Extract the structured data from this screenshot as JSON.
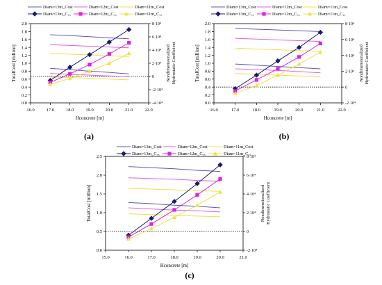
{
  "panels": [
    {
      "label": "(a)",
      "x_ticks": [
        "16.0",
        "17.0",
        "18.0",
        "19.0",
        "20.0",
        "21.0",
        "22.0"
      ],
      "y_ticks": [
        "0.0",
        "0.2",
        "0.4",
        "0.6",
        "0.8",
        "1.0",
        "1.2",
        "1.4",
        "1.6",
        "1.8",
        "2.0"
      ],
      "y2_ticks": [
        "-4·10⁴",
        "-2·10⁴",
        "0",
        "2·10⁴",
        "4·10⁴",
        "6·10⁴",
        "8·10⁴"
      ],
      "xlabel": "Hconcrete [m]",
      "ylabel": "TotalCost [million]",
      "y2label_line1": "Nondimensionalized",
      "y2label_line2": "Hydrostatic Coefficient"
    },
    {
      "label": "(b)",
      "x_ticks": [
        "16.0",
        "17.0",
        "18.0",
        "19.0",
        "20.0",
        "21.0",
        "22.0"
      ],
      "y_ticks": [
        "0.0",
        "0.2",
        "0.4",
        "0.6",
        "0.8",
        "1.0",
        "1.2",
        "1.4",
        "1.6",
        "1.8",
        "2.0"
      ],
      "y2_ticks": [
        "-2·10⁴",
        "0",
        "2·10⁴",
        "4·10⁴",
        "6·10⁴",
        "8·10⁴"
      ],
      "xlabel": "Hconcrete [m]",
      "ylabel": "TotalCost [million]",
      "y2label_line1": "Nondimensionalized",
      "y2label_line2": "Hydrostatic Coefficient"
    },
    {
      "label": "(c)",
      "x_ticks": [
        "15.0",
        "16.0",
        "17.0",
        "18.0",
        "19.0",
        "20.0",
        "21.0"
      ],
      "y_ticks": [
        "0.0",
        "0.5",
        "1.0",
        "1.5",
        "2.0",
        "2.5"
      ],
      "y2_ticks": [
        "-2·10⁴",
        "0",
        "2·10⁴",
        "4·10⁴",
        "6·10⁴",
        "8·10⁴"
      ],
      "xlabel": "Hconcrete [m]",
      "ylabel": "TotalCost [million]",
      "y2label_line1": "Nondimensionalized",
      "y2label_line2": "Hydrostatic Coefficient"
    }
  ],
  "chart_data": [
    {
      "type": "line",
      "title": "(a)",
      "xlabel": "Hconcrete [m]",
      "ylabel": "TotalCost [million]",
      "y2label": "Nondimensionalized Hydrostatic Coefficient",
      "xlim": [
        16,
        22
      ],
      "ylim": [
        0,
        2.0
      ],
      "y2lim": [
        -40000,
        80000
      ],
      "x": [
        17,
        18,
        19,
        20,
        21
      ],
      "cost_series": [
        {
          "name": "Diam=13m_Cost",
          "color": "#5a5ab4",
          "values": [
            1.72,
            1.7,
            1.67,
            1.64,
            1.62
          ]
        },
        {
          "name": "Diam=12m_Cost",
          "color": "#e060e0",
          "values": [
            1.47,
            1.45,
            1.43,
            1.41,
            1.39
          ]
        },
        {
          "name": "Diam=11m_Cost",
          "color": "#f0e040",
          "values": [
            1.25,
            1.23,
            1.21,
            1.19,
            1.17
          ]
        },
        {
          "name": "Diam=13m_Cost",
          "color": "#5a5ab4",
          "values": [
            0.87,
            0.84,
            0.8,
            0.77,
            0.73
          ]
        },
        {
          "name": "Diam=12m_Cost",
          "color": "#e060e0",
          "values": [
            0.74,
            0.72,
            0.7,
            0.68,
            0.66
          ]
        },
        {
          "name": "Diam=11m_Cost",
          "color": "#f0e040",
          "values": [
            0.65,
            0.64,
            0.62,
            0.6,
            0.58
          ]
        }
      ],
      "coef_series": [
        {
          "name": "Diam=13m_C₅₅",
          "color": "#1a1a6e",
          "marker": "diamond",
          "values": [
            -6000,
            14000,
            33000,
            52000,
            71000
          ]
        },
        {
          "name": "Diam=12m_C₅₅",
          "color": "#e020e0",
          "marker": "square",
          "values": [
            -9000,
            4000,
            18000,
            34000,
            51000
          ]
        },
        {
          "name": "Diam=11m_C₅₅",
          "color": "#f0e040",
          "marker": "triangle",
          "values": [
            -12000,
            -3000,
            8000,
            20000,
            35000
          ]
        }
      ],
      "reference_line": {
        "y2": 0,
        "style": "dotted"
      }
    },
    {
      "type": "line",
      "title": "(b)",
      "xlabel": "Hconcrete [m]",
      "ylabel": "TotalCost [million]",
      "y2label": "Nondimensionalized Hydrostatic Coefficient",
      "xlim": [
        16,
        22
      ],
      "ylim": [
        0,
        2.0
      ],
      "y2lim": [
        -20000,
        80000
      ],
      "x": [
        17,
        18,
        19,
        20,
        21
      ],
      "cost_series": [
        {
          "name": "Diam=13m_Cost",
          "color": "#5a5ab4",
          "values": [
            1.88,
            1.86,
            1.84,
            1.82,
            1.8
          ]
        },
        {
          "name": "Diam=12m_Cost",
          "color": "#e060e0",
          "values": [
            1.63,
            1.61,
            1.59,
            1.57,
            1.55
          ]
        },
        {
          "name": "Diam=11m_Cost",
          "color": "#f0e040",
          "values": [
            1.38,
            1.36,
            1.34,
            1.32,
            1.3
          ]
        },
        {
          "name": "Diam=13m_Cost",
          "color": "#5a5ab4",
          "values": [
            0.98,
            0.95,
            0.92,
            0.89,
            0.86
          ]
        },
        {
          "name": "Diam=12m_Cost",
          "color": "#e060e0",
          "values": [
            0.86,
            0.84,
            0.82,
            0.79,
            0.76
          ]
        },
        {
          "name": "Diam=11m_Cost",
          "color": "#f0e040",
          "values": [
            0.74,
            0.72,
            0.7,
            0.68,
            0.66
          ]
        }
      ],
      "coef_series": [
        {
          "name": "Diam=13m_C₅₅",
          "color": "#1a1a6e",
          "marker": "diamond",
          "values": [
            -2000,
            15000,
            33000,
            50000,
            69000
          ]
        },
        {
          "name": "Diam=12m_C₅₅",
          "color": "#e020e0",
          "marker": "square",
          "values": [
            -5000,
            9000,
            23000,
            38000,
            55000
          ]
        },
        {
          "name": "Diam=11m_C₅₅",
          "color": "#f0e040",
          "marker": "triangle",
          "values": [
            -8000,
            2000,
            15000,
            29000,
            44000
          ]
        }
      ],
      "reference_line": {
        "y2": 0,
        "style": "dotted"
      }
    },
    {
      "type": "line",
      "title": "(c)",
      "xlabel": "Hconcrete [m]",
      "ylabel": "TotalCost [million]",
      "y2label": "Nondimensionalized Hydrostatic Coefficient",
      "xlim": [
        15,
        21
      ],
      "ylim": [
        0,
        2.5
      ],
      "y2lim": [
        -20000,
        80000
      ],
      "x": [
        16,
        17,
        18,
        19,
        20
      ],
      "cost_series": [
        {
          "name": "Diam=13m_Cost",
          "color": "#5a5ab4",
          "values": [
            2.23,
            2.2,
            2.17,
            2.13,
            2.1
          ]
        },
        {
          "name": "Diam=12m_Cost",
          "color": "#e060e0",
          "values": [
            1.93,
            1.91,
            1.89,
            1.86,
            1.84
          ]
        },
        {
          "name": "Diam=11m_Cost",
          "color": "#f0e040",
          "values": [
            1.65,
            1.63,
            1.61,
            1.59,
            1.57
          ]
        },
        {
          "name": "Diam=13m_Cost",
          "color": "#5a5ab4",
          "values": [
            1.27,
            1.24,
            1.2,
            1.17,
            1.13
          ]
        },
        {
          "name": "Diam=12m_Cost",
          "color": "#e060e0",
          "values": [
            1.13,
            1.1,
            1.07,
            1.05,
            1.02
          ]
        },
        {
          "name": "Diam=11m_Cost",
          "color": "#f0e040",
          "values": [
            0.97,
            0.95,
            0.93,
            0.91,
            0.89
          ]
        }
      ],
      "coef_series": [
        {
          "name": "Diam=13m_C₅₅",
          "color": "#1a1a6e",
          "marker": "diamond",
          "values": [
            -4000,
            14000,
            32000,
            51000,
            71000
          ]
        },
        {
          "name": "Diam=12m_C₅₅",
          "color": "#e020e0",
          "marker": "square",
          "values": [
            -6000,
            8000,
            23000,
            39000,
            56000
          ]
        },
        {
          "name": "Diam=11m_C₅₅",
          "color": "#f0e040",
          "marker": "triangle",
          "values": [
            -8000,
            3000,
            15000,
            28000,
            42000
          ]
        }
      ],
      "reference_line": {
        "y2": 0,
        "style": "dotted"
      }
    }
  ]
}
